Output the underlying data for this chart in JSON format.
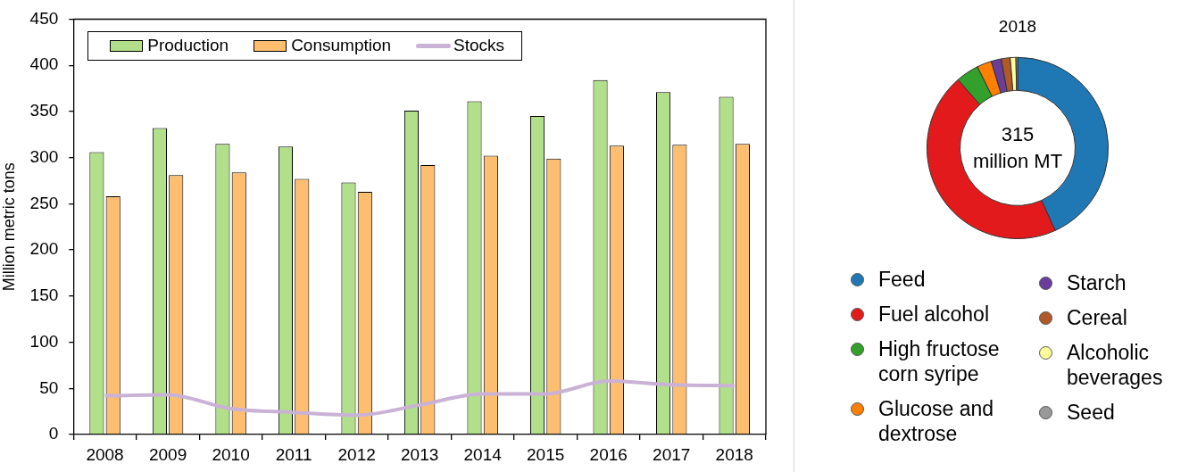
{
  "chart_data": [
    {
      "type": "bar",
      "ylabel": "Million metric tons",
      "categories": [
        "2008",
        "2009",
        "2010",
        "2011",
        "2012",
        "2013",
        "2014",
        "2015",
        "2016",
        "2017",
        "2018"
      ],
      "series": [
        {
          "name": "Production",
          "color": "#b2df8a",
          "values": [
            306,
            332,
            315,
            312,
            273,
            351,
            361,
            345,
            384,
            371,
            366
          ]
        },
        {
          "name": "Consumption",
          "color": "#fdbf6f",
          "values": [
            258,
            281,
            284,
            277,
            263,
            292,
            302,
            299,
            313,
            314,
            315
          ]
        },
        {
          "name": "Stocks",
          "type": "line",
          "color": "#cab2d6",
          "values": [
            42,
            43,
            28,
            24,
            21,
            32,
            44,
            44,
            58,
            54,
            53
          ]
        }
      ],
      "ylim": [
        0,
        450
      ],
      "yticks": [
        0,
        50,
        100,
        150,
        200,
        250,
        300,
        350,
        400,
        450
      ],
      "grid": false,
      "legend": "top left",
      "marker": "none"
    },
    {
      "type": "donut",
      "title": "2018",
      "categories": [
        "Feed",
        "Fuel alcohol",
        "High fructose corn syripe",
        "Glucose and dextrose",
        "Starch",
        "Cereal",
        "Alcoholic beverages",
        "Seed"
      ],
      "values": [
        43.2,
        45.4,
        4.1,
        2.6,
        1.8,
        1.6,
        1.0,
        0.3
      ],
      "colors": [
        "#1f78b4",
        "#e31a1c",
        "#33a02c",
        "#ff7f00",
        "#6a3d9a",
        "#b15928",
        "#ffff99",
        "#999999"
      ],
      "legend": "bottom",
      "annotations": [
        "315 million MT"
      ]
    }
  ]
}
